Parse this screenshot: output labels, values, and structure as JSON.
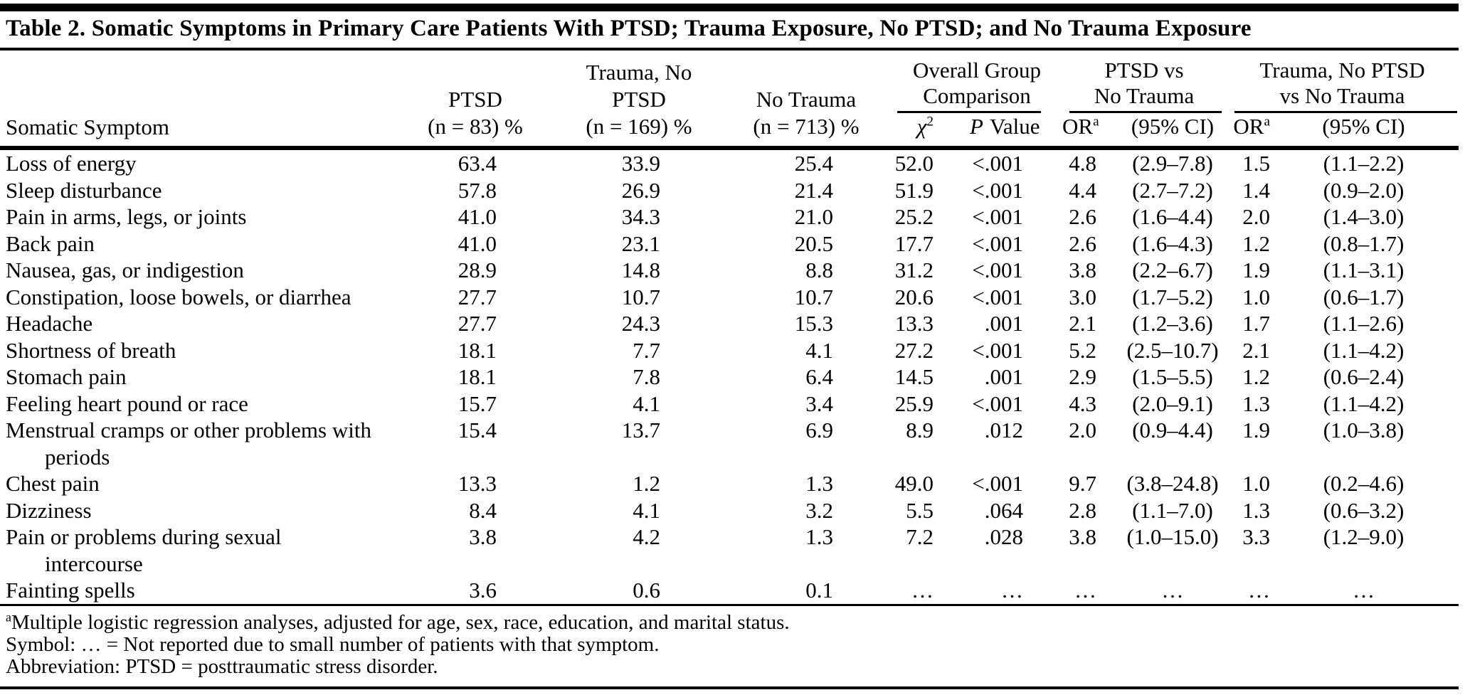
{
  "table": {
    "title": "Table 2. Somatic Symptoms in Primary Care Patients With PTSD; Trauma Exposure, No PTSD; and No Trauma Exposure",
    "header": {
      "symptom": "Somatic Symptom",
      "groups": [
        {
          "line1": "PTSD",
          "line2": "(n = 83) %"
        },
        {
          "line1": "Trauma, No PTSD",
          "line2": "(n = 169) %"
        },
        {
          "line1": "No Trauma",
          "line2": "(n = 713) %"
        }
      ],
      "spanners": [
        {
          "line1": "Overall Group",
          "line2": "Comparison"
        },
        {
          "line1": "PTSD vs",
          "line2": "No Trauma"
        },
        {
          "line1": "Trauma, No PTSD",
          "line2": "vs No Trauma"
        }
      ],
      "sub": {
        "chi_base": "χ",
        "chi_sup": "2",
        "p_italic": "P",
        "p_rest": "Value",
        "or_base": "OR",
        "or_sup": "a",
        "ci": "(95% CI)"
      }
    },
    "rows": [
      {
        "symptom": "Loss of energy",
        "ptsd": "63.4",
        "trauma": "33.9",
        "no_trauma": "25.4",
        "chi2": "52.0",
        "p": "<.001",
        "or1": "4.8",
        "ci1": "(2.9–7.8)",
        "or2": "1.5",
        "ci2": "(1.1–2.2)"
      },
      {
        "symptom": "Sleep disturbance",
        "ptsd": "57.8",
        "trauma": "26.9",
        "no_trauma": "21.4",
        "chi2": "51.9",
        "p": "<.001",
        "or1": "4.4",
        "ci1": "(2.7–7.2)",
        "or2": "1.4",
        "ci2": "(0.9–2.0)"
      },
      {
        "symptom": "Pain in arms, legs, or joints",
        "ptsd": "41.0",
        "trauma": "34.3",
        "no_trauma": "21.0",
        "chi2": "25.2",
        "p": "<.001",
        "or1": "2.6",
        "ci1": "(1.6–4.4)",
        "or2": "2.0",
        "ci2": "(1.4–3.0)"
      },
      {
        "symptom": "Back pain",
        "ptsd": "41.0",
        "trauma": "23.1",
        "no_trauma": "20.5",
        "chi2": "17.7",
        "p": "<.001",
        "or1": "2.6",
        "ci1": "(1.6–4.3)",
        "or2": "1.2",
        "ci2": "(0.8–1.7)"
      },
      {
        "symptom": "Nausea, gas, or indigestion",
        "ptsd": "28.9",
        "trauma": "14.8",
        "no_trauma": "8.8",
        "chi2": "31.2",
        "p": "<.001",
        "or1": "3.8",
        "ci1": "(2.2–6.7)",
        "or2": "1.9",
        "ci2": "(1.1–3.1)"
      },
      {
        "symptom": "Constipation, loose bowels, or diarrhea",
        "ptsd": "27.7",
        "trauma": "10.7",
        "no_trauma": "10.7",
        "chi2": "20.6",
        "p": "<.001",
        "or1": "3.0",
        "ci1": "(1.7–5.2)",
        "or2": "1.0",
        "ci2": "(0.6–1.7)"
      },
      {
        "symptom": "Headache",
        "ptsd": "27.7",
        "trauma": "24.3",
        "no_trauma": "15.3",
        "chi2": "13.3",
        "p": ".001",
        "or1": "2.1",
        "ci1": "(1.2–3.6)",
        "or2": "1.7",
        "ci2": "(1.1–2.6)"
      },
      {
        "symptom": "Shortness of breath",
        "ptsd": "18.1",
        "trauma": "7.7",
        "no_trauma": "4.1",
        "chi2": "27.2",
        "p": "<.001",
        "or1": "5.2",
        "ci1": "(2.5–10.7)",
        "or2": "2.1",
        "ci2": "(1.1–4.2)"
      },
      {
        "symptom": "Stomach pain",
        "ptsd": "18.1",
        "trauma": "7.8",
        "no_trauma": "6.4",
        "chi2": "14.5",
        "p": ".001",
        "or1": "2.9",
        "ci1": "(1.5–5.5)",
        "or2": "1.2",
        "ci2": "(0.6–2.4)"
      },
      {
        "symptom": "Feeling heart pound or race",
        "ptsd": "15.7",
        "trauma": "4.1",
        "no_trauma": "3.4",
        "chi2": "25.9",
        "p": "<.001",
        "or1": "4.3",
        "ci1": "(2.0–9.1)",
        "or2": "1.3",
        "ci2": "(1.1–4.2)"
      },
      {
        "symptom": "Menstrual cramps or other problems with",
        "symptom2": "periods",
        "ptsd": "15.4",
        "trauma": "13.7",
        "no_trauma": "6.9",
        "chi2": "8.9",
        "p": ".012",
        "or1": "2.0",
        "ci1": "(0.9–4.4)",
        "or2": "1.9",
        "ci2": "(1.0–3.8)"
      },
      {
        "symptom": "Chest pain",
        "ptsd": "13.3",
        "trauma": "1.2",
        "no_trauma": "1.3",
        "chi2": "49.0",
        "p": "<.001",
        "or1": "9.7",
        "ci1": "(3.8–24.8)",
        "or2": "1.0",
        "ci2": "(0.2–4.6)"
      },
      {
        "symptom": "Dizziness",
        "ptsd": "8.4",
        "trauma": "4.1",
        "no_trauma": "3.2",
        "chi2": "5.5",
        "p": ".064",
        "or1": "2.8",
        "ci1": "(1.1–7.0)",
        "or2": "1.3",
        "ci2": "(0.6–3.2)"
      },
      {
        "symptom": "Pain or problems during sexual",
        "symptom2": "intercourse",
        "ptsd": "3.8",
        "trauma": "4.2",
        "no_trauma": "1.3",
        "chi2": "7.2",
        "p": ".028",
        "or1": "3.8",
        "ci1": "(1.0–15.0)",
        "or2": "3.3",
        "ci2": "(1.2–9.0)"
      },
      {
        "symptom": "Fainting spells",
        "ptsd": "3.6",
        "trauma": "0.6",
        "no_trauma": "0.1",
        "chi2": "…",
        "p": "…",
        "or1": "…",
        "ci1": "…",
        "or2": "…",
        "ci2": "…"
      }
    ],
    "footnotes": [
      {
        "sup": "a",
        "text": "Multiple logistic regression analyses, adjusted for age, sex, race, education, and marital status."
      },
      {
        "sup": "",
        "text": "Symbol: … = Not reported due to small number of patients with that symptom."
      },
      {
        "sup": "",
        "text": "Abbreviation: PTSD = posttraumatic stress disorder."
      }
    ]
  }
}
